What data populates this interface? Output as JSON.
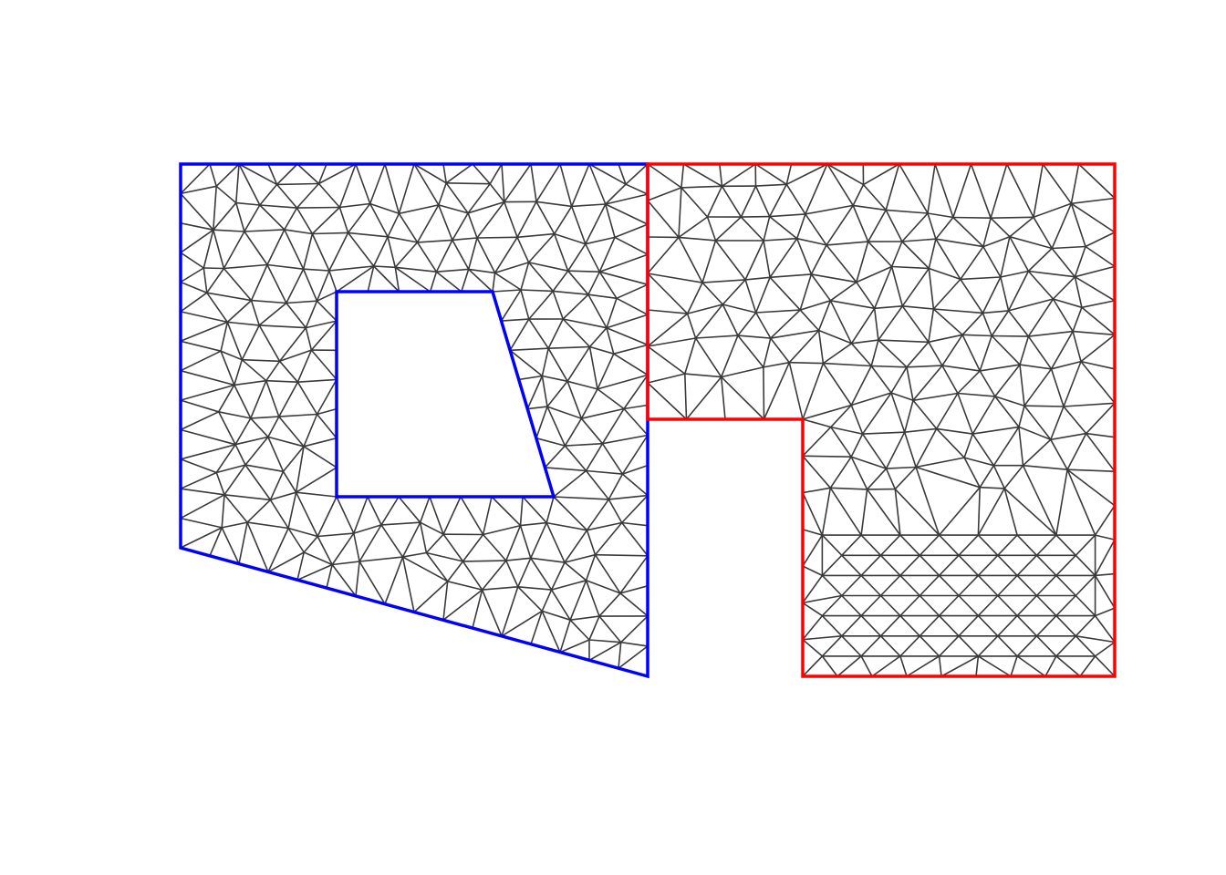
{
  "figure": {
    "kind": "triangular mesh of two adjacent polygonal domains",
    "mesh_color": "#3a3a3a",
    "background": "#ffffff"
  },
  "domains": [
    {
      "id": "left-domain",
      "boundary_color": "#0000ff",
      "has_hole": true,
      "hole_shape": "quadrilateral"
    },
    {
      "id": "right-domain",
      "boundary_color": "#ff0000",
      "has_hole": false,
      "shape": "L-shaped (notch at lower-left)"
    }
  ]
}
